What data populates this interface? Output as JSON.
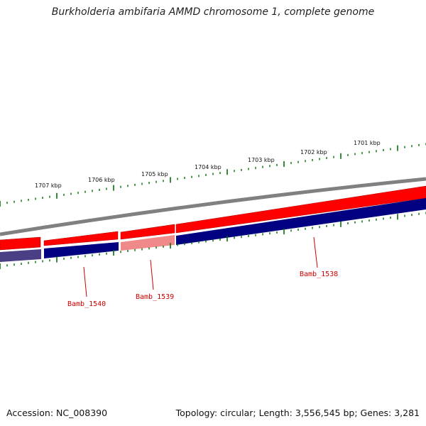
{
  "title": "Burkholderia ambifaria AMMD chromosome 1, complete genome",
  "footer": {
    "accession": "Accession: NC_008390",
    "topology": "Topology: circular; Length: 3,556,545 bp; Genes: 3,281"
  },
  "ruler_ticks": [
    "1701 kbp",
    "1702 kbp",
    "1703 kbp",
    "1704 kbp",
    "1705 kbp",
    "1706 kbp",
    "1707 kbp"
  ],
  "genes": [
    {
      "name": "Bamb_1538"
    },
    {
      "name": "Bamb_1539"
    },
    {
      "name": "Bamb_1540"
    }
  ],
  "colors": {
    "backbone": "#808080",
    "forward_cds": "#ff0000",
    "forward_cds_light": "#ff8a8a",
    "gene_track": "#000080",
    "gene_track_light": "#4a3f85",
    "tick": "#007000",
    "label": "#cc0000"
  }
}
